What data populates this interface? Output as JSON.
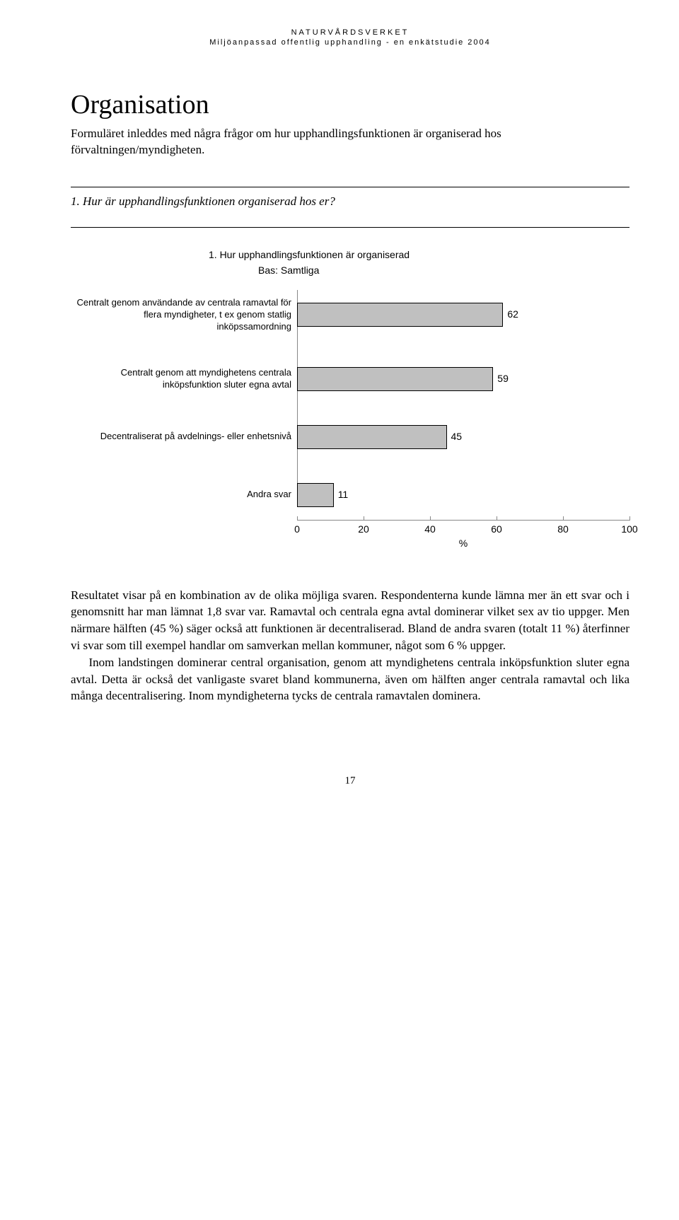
{
  "header": {
    "line1": "NATURVÅRDSVERKET",
    "line2": "Miljöanpassad offentlig upphandling - en enkätstudie 2004"
  },
  "section_title": "Organisation",
  "intro": "Formuläret inleddes med några frågor om hur upphandlingsfunktionen är organiserad hos förvaltningen/myndigheten.",
  "question": "1. Hur är upphandlingsfunktionen organiserad hos er?",
  "chart": {
    "type": "bar",
    "title": "1. Hur upphandlingsfunktionen är organiserad",
    "subtitle": "Bas: Samtliga",
    "bar_color": "#c0c0c0",
    "bar_border": "#000000",
    "xlim": [
      0,
      100
    ],
    "xtick_step": 20,
    "xticks": [
      0,
      20,
      40,
      60,
      80,
      100
    ],
    "xlabel": "%",
    "label_fontsize": 13,
    "categories": [
      "Centralt genom användande av centrala ramavtal för flera myndigheter, t ex genom statlig inköpssamordning",
      "Centralt genom att myndighetens centrala inköpsfunktion sluter egna avtal",
      "Decentraliserat på avdelnings- eller enhetsnivå",
      "Andra svar"
    ],
    "values": [
      62,
      59,
      45,
      11
    ]
  },
  "body": {
    "p1": "Resultatet visar på en kombination av de olika möjliga svaren. Respondenterna kunde lämna mer än ett svar och i genomsnitt har man lämnat 1,8 svar var. Ramavtal och centrala egna avtal dominerar vilket sex av tio uppger. Men närmare hälften (45 %) säger också att funktionen är decentraliserad. Bland de andra svaren (totalt 11 %) återfinner vi svar som till exempel handlar om samverkan mellan kommuner, något som 6 % uppger.",
    "p2": "Inom landstingen dominerar central organisation, genom att myndighetens centrala inköpsfunktion sluter egna avtal. Detta är också det vanligaste svaret bland kommunerna, även om hälften anger centrala ramavtal och lika många decentralisering. Inom myndigheterna tycks de centrala ramavtalen dominera."
  },
  "page_number": "17"
}
